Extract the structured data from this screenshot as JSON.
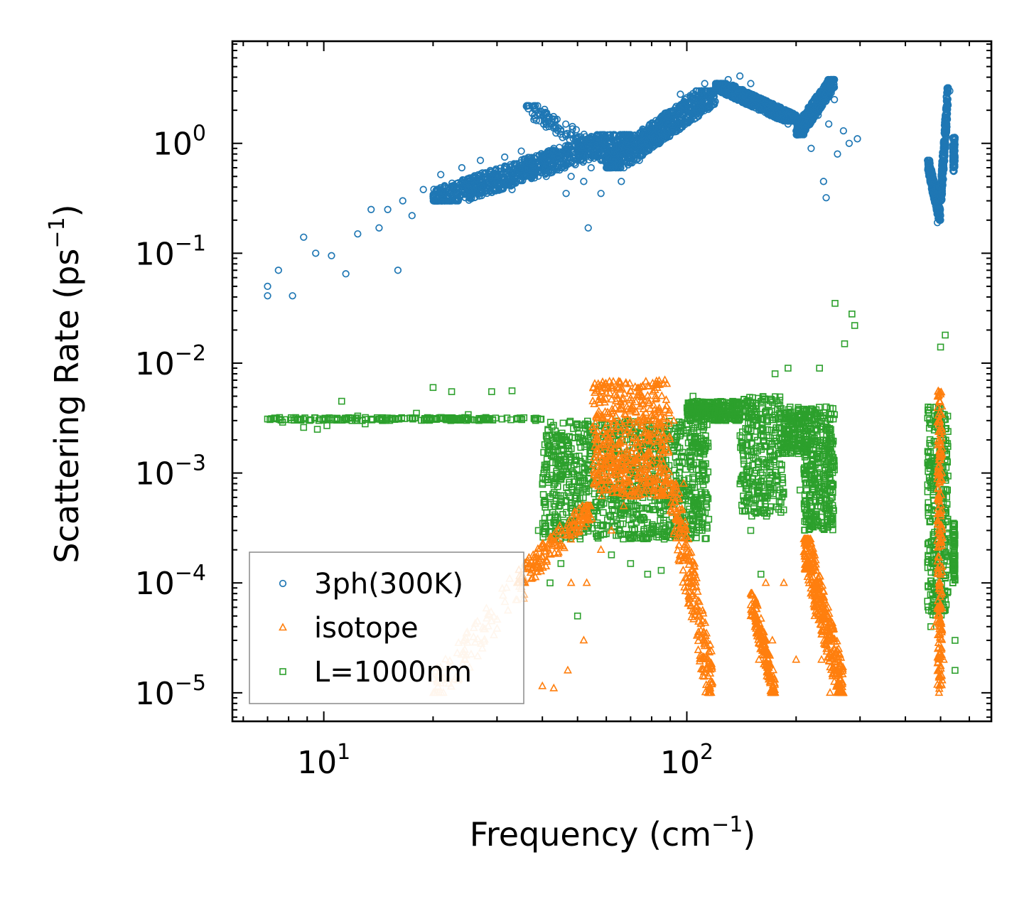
{
  "chart_data": {
    "type": "scatter",
    "title": "",
    "xlabel": "Frequency (cm",
    "xlabel_sup": "−1",
    "xlabel_end": ")",
    "ylabel": "Scattering Rate (ps",
    "ylabel_sup": "−1",
    "ylabel_end": ")",
    "xscale": "log",
    "yscale": "log",
    "xlim": [
      5.6,
      690
    ],
    "ylim": [
      5.5e-06,
      8.5
    ],
    "x_ticks": [
      {
        "value": 10,
        "base": "10",
        "exp": "1"
      },
      {
        "value": 100,
        "base": "10",
        "exp": "2"
      }
    ],
    "y_ticks": [
      {
        "value": 1,
        "base": "10",
        "exp": "0"
      },
      {
        "value": 0.1,
        "base": "10",
        "exp": "−1"
      },
      {
        "value": 0.01,
        "base": "10",
        "exp": "−2"
      },
      {
        "value": 0.001,
        "base": "10",
        "exp": "−3"
      },
      {
        "value": 0.0001,
        "base": "10",
        "exp": "−4"
      },
      {
        "value": 1e-05,
        "base": "10",
        "exp": "−5"
      }
    ],
    "legend_position": "lower-left",
    "series": [
      {
        "name": "3ph(300K)",
        "marker": "circle",
        "color": "#1f77b4",
        "x": [
          7.0,
          7.0,
          7.5,
          8.2,
          8.8,
          9.5,
          10.5,
          11.5,
          12.4,
          13.5,
          14.2,
          15.0,
          16.0,
          16.5,
          17.5,
          18.8,
          20.0,
          21.0,
          22.5,
          24.0,
          25.0,
          27.0,
          28.5,
          30.0,
          31.5,
          33.0,
          35.0,
          36.0,
          37.5,
          39.0,
          41.0,
          43.0,
          45.0,
          46.5,
          48.0,
          50.0,
          52.0,
          53.5,
          54.5,
          56.0,
          58.0,
          60.0,
          63.0,
          66.0,
          70.0,
          74.0,
          78.0,
          82.0,
          86.0,
          88.0,
          92.0,
          96.0,
          100.0,
          106.0,
          112.0,
          120.0,
          130.0,
          140.0,
          150.0,
          160.0,
          170.0,
          180.0,
          190.0,
          200.0,
          210.0,
          220.0,
          230.0,
          238.0,
          242.0,
          246.0,
          250.0,
          255.0,
          260.0,
          270.0,
          280.0,
          295.0,
          470.0,
          480.0,
          490.0,
          500.0,
          510.0,
          520.0,
          530.0,
          545.0
        ],
        "y": [
          0.05,
          0.041,
          0.07,
          0.041,
          0.14,
          0.1,
          0.095,
          0.065,
          0.15,
          0.25,
          0.17,
          0.25,
          0.07,
          0.3,
          0.22,
          0.38,
          0.33,
          0.52,
          0.3,
          0.6,
          0.4,
          0.7,
          0.5,
          0.45,
          0.75,
          0.38,
          0.85,
          0.5,
          0.65,
          0.55,
          0.5,
          0.9,
          0.6,
          0.35,
          0.5,
          0.7,
          0.45,
          0.17,
          0.6,
          0.8,
          0.35,
          0.6,
          0.8,
          0.45,
          0.75,
          0.7,
          0.9,
          1.1,
          1.4,
          1.8,
          2.0,
          2.8,
          2.6,
          3.0,
          3.5,
          3.2,
          3.8,
          4.1,
          3.5,
          2.5,
          2.0,
          1.7,
          1.5,
          1.3,
          1.2,
          0.9,
          1.8,
          0.45,
          0.32,
          1.5,
          3.5,
          2.5,
          0.8,
          1.3,
          1.0,
          1.1,
          0.55,
          0.35,
          0.19,
          0.22,
          0.6,
          1.5,
          3.0,
          0.9
        ],
        "cluster_x": [
          20.0,
          70.0
        ],
        "cluster_y": [
          0.3,
          1.2
        ],
        "stream1_x": [
          36.0,
          62.0
        ],
        "stream1_y": [
          2.2,
          0.7
        ],
        "stream2_x": [
          60.0,
          120.0
        ],
        "stream2_y": [
          0.6,
          3.0
        ],
        "stream3_x": [
          120.0,
          200.0
        ],
        "stream3_y": [
          3.5,
          1.6
        ],
        "stream4_x": [
          200.0,
          255.0
        ],
        "stream4_y": [
          1.2,
          3.8
        ],
        "stream5_x": [
          460.0,
          500.0
        ],
        "stream5_y": [
          0.7,
          0.2
        ],
        "stream6_x": [
          500.0,
          525.0
        ],
        "stream6_y": [
          0.3,
          3.2
        ],
        "column_x": [
          540.0,
          548.0
        ],
        "column_y": [
          0.55,
          1.15
        ]
      },
      {
        "name": "isotope",
        "marker": "triangle",
        "color": "#ff7f0e",
        "faint_color": "#ffbf86",
        "faint_x": [
          20.0,
          36.0
        ],
        "faint_y": [
          1e-05,
          0.00011
        ],
        "ramp_x": [
          34.0,
          55.0
        ],
        "ramp_y": [
          0.0001,
          0.0005
        ],
        "hump_x": [
          55.0,
          90.0
        ],
        "hump_y": [
          0.0006,
          0.007
        ],
        "fall1_x": [
          90.0,
          118.0
        ],
        "fall1_y": [
          0.0008,
          1e-05
        ],
        "fall2_x": [
          150.0,
          175.0
        ],
        "fall2_y": [
          8e-05,
          1e-05
        ],
        "fall3_x": [
          210.0,
          270.0
        ],
        "fall3_y": [
          0.00025,
          1e-05
        ],
        "spike_x": [
          490.0,
          505.0
        ],
        "spike_y": [
          0.006,
          1e-05
        ],
        "x": [
          40.0,
          43.0,
          47.0,
          48.0,
          52.0,
          53.0,
          58.0,
          62.0,
          67.0,
          72.0,
          78.0,
          82.0,
          87.0,
          92.0,
          98.0,
          105.0,
          112.0,
          116.0,
          150.0,
          158.0,
          165.0,
          172.0,
          185.0,
          200.0,
          215.0,
          225.0,
          235.0,
          248.0,
          258.0,
          268.0,
          480.0,
          495.0,
          505.0,
          510.0
        ],
        "y": [
          1.15e-05,
          1.1e-05,
          1.6e-05,
          0.0001,
          3e-05,
          0.0001,
          0.0002,
          0.0003,
          0.0005,
          0.001,
          0.003,
          0.005,
          0.007,
          0.003,
          0.0008,
          0.00015,
          3e-05,
          1.1e-05,
          5e-05,
          2e-05,
          0.0001,
          3e-05,
          0.0001,
          2e-05,
          0.00025,
          5e-05,
          2e-05,
          1e-05,
          1.5e-05,
          1.2e-05,
          4e-05,
          1e-05,
          1.3e-05,
          2e-05
        ]
      },
      {
        "name": "L=1000nm",
        "marker": "square",
        "color": "#2ca02c",
        "plateau_x": [
          7.0,
          40.0
        ],
        "plateau_y": [
          0.003,
          0.0032
        ],
        "cloud_x": [
          40.0,
          115.0
        ],
        "cloud_y": [
          0.00025,
          0.003
        ],
        "band_x": [
          100.0,
          140.0
        ],
        "band_y": [
          0.003,
          0.0045
        ],
        "dip_x": [
          140.0,
          185.0
        ],
        "dip_y": [
          0.0004,
          0.005
        ],
        "band2_x": [
          185.0,
          215.0
        ],
        "band2_y": [
          0.0015,
          0.004
        ],
        "dip2_x": [
          210.0,
          255.0
        ],
        "dip2_y": [
          0.0003,
          0.004
        ],
        "col_x": [
          460.0,
          525.0
        ],
        "col_y": [
          5e-05,
          0.004
        ],
        "col2_x": [
          540.0,
          548.0
        ],
        "col2_y": [
          0.0001,
          0.00035
        ],
        "x": [
          7.0,
          7.7,
          8.8,
          9.6,
          10.2,
          11.2,
          12.4,
          13.0,
          14.5,
          16.0,
          18.0,
          20.0,
          22.5,
          25.0,
          29.0,
          33.0,
          39.0,
          42.0,
          45.0,
          50.0,
          55.0,
          62.0,
          70.0,
          78.0,
          85.0,
          92.0,
          98.0,
          104.0,
          150.0,
          160.0,
          175.0,
          190.0,
          205.0,
          232.0,
          256.0,
          272.0,
          285.0,
          290.0,
          470.0,
          500.0,
          515.0,
          520.0,
          548.0,
          548.0
        ],
        "y": [
          0.0031,
          0.0029,
          0.0026,
          0.0025,
          0.0027,
          0.0045,
          0.0033,
          0.0028,
          0.003,
          0.0031,
          0.0035,
          0.006,
          0.0055,
          0.0034,
          0.0055,
          0.0056,
          0.0003,
          0.0001,
          0.00015,
          5e-05,
          0.0004,
          0.00018,
          0.00015,
          0.00012,
          0.00013,
          0.0003,
          0.0003,
          0.005,
          0.0003,
          0.00012,
          0.008,
          0.009,
          0.0007,
          0.009,
          0.035,
          0.015,
          0.028,
          0.022,
          4e-05,
          0.014,
          0.018,
          0.0015,
          1.6e-05,
          3e-05
        ]
      }
    ]
  }
}
